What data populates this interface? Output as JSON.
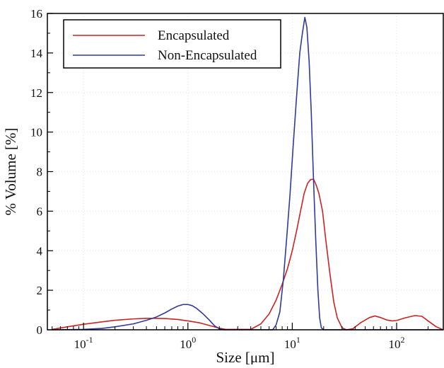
{
  "chart_data": {
    "type": "line",
    "title": "",
    "xlabel": "Size [μm]",
    "ylabel": "% Volume [%]",
    "x_scale": "log",
    "xlim": [
      0.045,
      280
    ],
    "ylim": [
      0,
      16
    ],
    "y_ticks": [
      0,
      2,
      4,
      6,
      8,
      10,
      12,
      14,
      16
    ],
    "x_ticks": [
      {
        "value": 0.1,
        "base": "10",
        "exp": "-1"
      },
      {
        "value": 1,
        "base": "10",
        "exp": "0"
      },
      {
        "value": 10,
        "base": "10",
        "exp": "1"
      },
      {
        "value": 100,
        "base": "10",
        "exp": "2"
      }
    ],
    "grid": "faint dotted",
    "legend_position": "top-left",
    "series": [
      {
        "name": "Encapsulated",
        "color": "#cc2222",
        "points": [
          [
            0.05,
            0.02
          ],
          [
            0.07,
            0.15
          ],
          [
            0.1,
            0.28
          ],
          [
            0.15,
            0.4
          ],
          [
            0.2,
            0.48
          ],
          [
            0.3,
            0.55
          ],
          [
            0.4,
            0.58
          ],
          [
            0.5,
            0.58
          ],
          [
            0.6,
            0.57
          ],
          [
            0.8,
            0.52
          ],
          [
            1.0,
            0.45
          ],
          [
            1.3,
            0.35
          ],
          [
            1.6,
            0.22
          ],
          [
            2.0,
            0.08
          ],
          [
            2.3,
            0.02
          ],
          [
            4.0,
            0.02
          ],
          [
            5.0,
            0.3
          ],
          [
            6.0,
            0.8
          ],
          [
            7.0,
            1.5
          ],
          [
            8.0,
            2.3
          ],
          [
            9.0,
            3.1
          ],
          [
            10.0,
            4.0
          ],
          [
            11.0,
            5.0
          ],
          [
            12.0,
            6.0
          ],
          [
            13.0,
            6.9
          ],
          [
            14.0,
            7.4
          ],
          [
            15.0,
            7.6
          ],
          [
            16.0,
            7.62
          ],
          [
            17.0,
            7.3
          ],
          [
            18.0,
            6.9
          ],
          [
            19.5,
            6.0
          ],
          [
            21.0,
            4.5
          ],
          [
            23.0,
            2.8
          ],
          [
            25.0,
            1.4
          ],
          [
            27.0,
            0.6
          ],
          [
            30.0,
            0.1
          ],
          [
            33.0,
            0.0
          ],
          [
            38.0,
            0.05
          ],
          [
            45.0,
            0.35
          ],
          [
            55.0,
            0.62
          ],
          [
            62.0,
            0.7
          ],
          [
            70.0,
            0.62
          ],
          [
            80.0,
            0.5
          ],
          [
            90.0,
            0.45
          ],
          [
            100.0,
            0.47
          ],
          [
            120.0,
            0.6
          ],
          [
            150.0,
            0.72
          ],
          [
            175.0,
            0.68
          ],
          [
            200.0,
            0.45
          ],
          [
            240.0,
            0.15
          ],
          [
            280.0,
            0.0
          ]
        ]
      },
      {
        "name": "Non-Encapsulated",
        "color": "#2f3a9a",
        "points": [
          [
            0.05,
            0.0
          ],
          [
            0.1,
            0.02
          ],
          [
            0.15,
            0.07
          ],
          [
            0.2,
            0.15
          ],
          [
            0.3,
            0.3
          ],
          [
            0.4,
            0.48
          ],
          [
            0.5,
            0.65
          ],
          [
            0.6,
            0.85
          ],
          [
            0.7,
            1.05
          ],
          [
            0.8,
            1.2
          ],
          [
            0.9,
            1.28
          ],
          [
            1.0,
            1.28
          ],
          [
            1.1,
            1.22
          ],
          [
            1.2,
            1.1
          ],
          [
            1.4,
            0.8
          ],
          [
            1.6,
            0.5
          ],
          [
            1.8,
            0.2
          ],
          [
            2.0,
            0.05
          ],
          [
            2.2,
            0.0
          ],
          [
            6.5,
            0.0
          ],
          [
            7.0,
            0.25
          ],
          [
            7.6,
            0.9
          ],
          [
            8.2,
            2.5
          ],
          [
            8.8,
            4.5
          ],
          [
            9.5,
            6.8
          ],
          [
            10.2,
            9.3
          ],
          [
            11.0,
            11.8
          ],
          [
            11.8,
            14.0
          ],
          [
            12.5,
            15.0
          ],
          [
            13.2,
            15.8
          ],
          [
            13.8,
            15.3
          ],
          [
            14.5,
            13.6
          ],
          [
            15.2,
            11.0
          ],
          [
            16.0,
            7.5
          ],
          [
            16.8,
            4.5
          ],
          [
            17.6,
            2.0
          ],
          [
            18.3,
            0.6
          ],
          [
            19.0,
            0.1
          ],
          [
            20.0,
            0.0
          ],
          [
            280.0,
            0.0
          ]
        ]
      }
    ]
  }
}
